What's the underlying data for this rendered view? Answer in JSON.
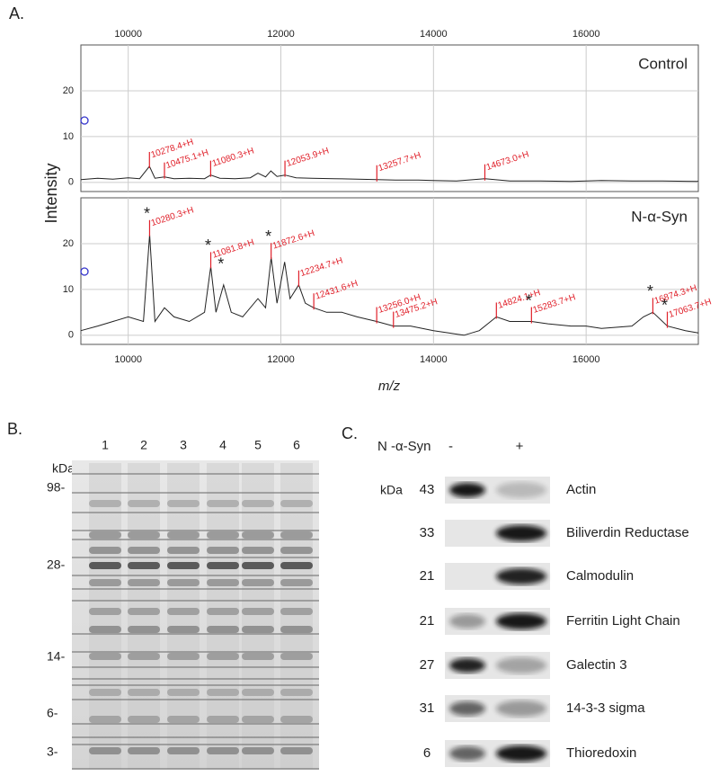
{
  "panel_a": {
    "label": "A.",
    "y_label": "Intensity",
    "x_label": "m/z",
    "xlim": [
      9380,
      17470
    ],
    "xticks": [
      10000,
      12000,
      14000,
      16000
    ],
    "ylim": [
      -2,
      30
    ],
    "yticks": [
      0,
      10,
      20
    ],
    "spectra": [
      {
        "name": "Control",
        "x": [
          9380,
          9600,
          9800,
          10000,
          10150,
          10278.4,
          10350,
          10475.1,
          10600,
          10800,
          11000,
          11080.3,
          11200,
          11400,
          11600,
          11700,
          11800,
          11870,
          11950,
          12053.9,
          12200,
          12400,
          12700,
          13000,
          13257.7,
          13500,
          13800,
          14000,
          14300,
          14673,
          15000,
          15400,
          15800,
          16200,
          16600,
          17000,
          17470
        ],
        "values": [
          0.6,
          0.9,
          0.7,
          1.0,
          0.8,
          3.5,
          0.9,
          1.2,
          0.8,
          0.9,
          0.8,
          1.6,
          0.9,
          0.8,
          1.0,
          2.0,
          1.2,
          2.5,
          1.3,
          1.6,
          1.0,
          0.9,
          0.8,
          0.7,
          0.6,
          0.5,
          0.5,
          0.4,
          0.3,
          0.8,
          0.3,
          0.3,
          0.2,
          0.4,
          0.3,
          0.3,
          0.2
        ],
        "peaks": [
          {
            "label": "10278.4+H",
            "x": 10278.4,
            "y": 3.5
          },
          {
            "label": "10475.1+H",
            "x": 10475.1,
            "y": 1.2
          },
          {
            "label": "11080.3+H",
            "x": 11080.3,
            "y": 1.6
          },
          {
            "label": "12053.9+H",
            "x": 12053.9,
            "y": 1.6
          },
          {
            "label": "13257.7+H",
            "x": 13257.7,
            "y": 0.6
          },
          {
            "label": "14673.0+H",
            "x": 14673,
            "y": 0.8
          }
        ]
      },
      {
        "name": "N-α-Syn",
        "x": [
          9380,
          9600,
          9800,
          10000,
          10200,
          10280.3,
          10350,
          10475.2,
          10600,
          10800,
          11000,
          11081.8,
          11150,
          11250,
          11350,
          11500,
          11700,
          11800,
          11872.6,
          11950,
          12050,
          12120,
          12234.7,
          12320,
          12431.6,
          12600,
          12800,
          13000,
          13256,
          13475.2,
          13700,
          14000,
          14200,
          14400,
          14600,
          14824.1,
          15000,
          15283.7,
          15500,
          15800,
          16000,
          16200,
          16600,
          16750,
          16874.3,
          17063.7,
          17300,
          17470
        ],
        "values": [
          1,
          2,
          3,
          4,
          3,
          22,
          3,
          6,
          4,
          3,
          5,
          15,
          5,
          11,
          5,
          4,
          8,
          6,
          17,
          7,
          16,
          8,
          11,
          7,
          6,
          5,
          5,
          4,
          3,
          2,
          2,
          1,
          0.5,
          0,
          1,
          4,
          3,
          3,
          2.5,
          2,
          2,
          1.5,
          2,
          4,
          5,
          2,
          1,
          0.5
        ],
        "peaks": [
          {
            "label": "10280.3+H",
            "x": 10280.3,
            "y": 22,
            "note": "*"
          },
          {
            "label": "11081.8+H",
            "x": 11081.8,
            "y": 15,
            "note": "*"
          },
          {
            "x": 11250,
            "y": 11,
            "note": "*"
          },
          {
            "label": "11872.6+H",
            "x": 11872.6,
            "y": 17,
            "note": "*"
          },
          {
            "label": "12234.7+H",
            "x": 12234.7,
            "y": 11
          },
          {
            "label": "12431.6+H",
            "x": 12431.6,
            "y": 6
          },
          {
            "label": "13256.0+H",
            "x": 13256,
            "y": 3
          },
          {
            "label": "13475.2+H",
            "x": 13475.2,
            "y": 2
          },
          {
            "label": "14824.1+H",
            "x": 14824.1,
            "y": 4
          },
          {
            "label": "15283.7+H",
            "x": 15283.7,
            "y": 3,
            "note": "*"
          },
          {
            "label": "16874.3+H",
            "x": 16874.3,
            "y": 5,
            "note": "*"
          },
          {
            "label": "17063.7+H",
            "x": 17063.7,
            "y": 2,
            "note": "*"
          }
        ]
      }
    ]
  },
  "panel_b": {
    "label": "B.",
    "lanes": [
      "1",
      "2",
      "3",
      "4",
      "5",
      "6"
    ],
    "unit": "kDa",
    "markers": [
      "98-",
      "28-",
      "14-",
      "6-",
      "3-"
    ]
  },
  "panel_c": {
    "label": "C.",
    "condition": "N -α-Syn",
    "minus": "-",
    "plus": "+",
    "unit": "kDa",
    "rows": [
      {
        "kda": "43",
        "protein": "Actin"
      },
      {
        "kda": "33",
        "protein": "Biliverdin Reductase"
      },
      {
        "kda": "21",
        "protein": "Calmodulin"
      },
      {
        "kda": "21",
        "protein": "Ferritin Light Chain"
      },
      {
        "kda": "27",
        "protein": "Galectin 3"
      },
      {
        "kda": "31",
        "protein": "14-3-3 sigma"
      },
      {
        "kda": "6",
        "protein": "Thioredoxin"
      }
    ]
  }
}
